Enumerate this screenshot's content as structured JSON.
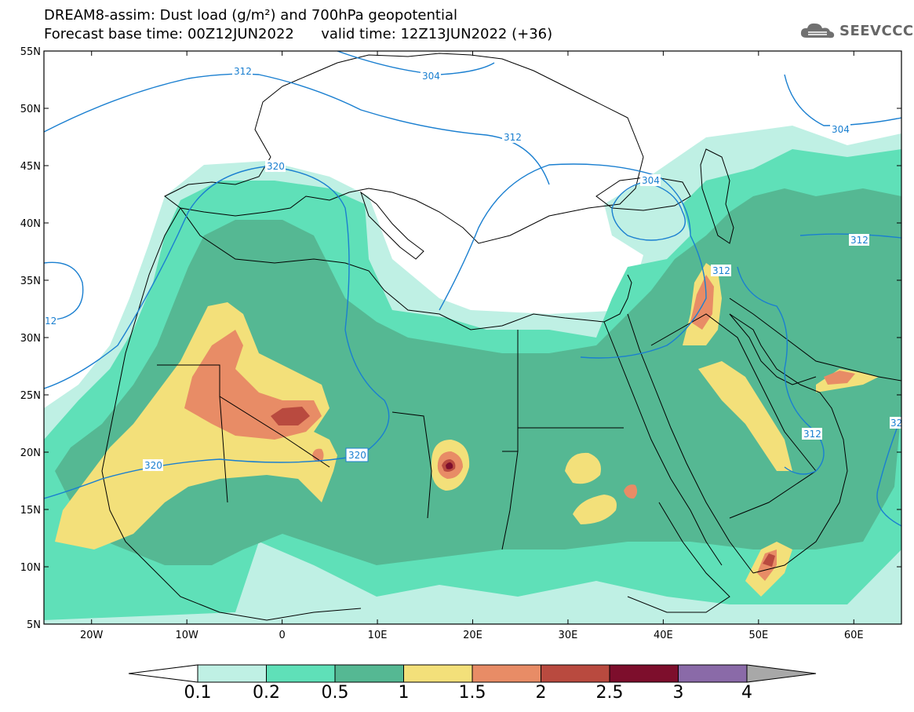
{
  "title": {
    "line1": "DREAM8-assim: Dust load (g/m²) and 700hPa geopotential",
    "line2": "Forecast base time: 00Z12JUN2022      valid time: 12Z13JUN2022 (+36)"
  },
  "logo": {
    "text": "SEEVCCC",
    "icon": "cloud-icon"
  },
  "axes": {
    "lon_range": [
      -25,
      65
    ],
    "lat_range": [
      5,
      55
    ],
    "x_ticks": [
      {
        "lon": -20,
        "label": "20W"
      },
      {
        "lon": -10,
        "label": "10W"
      },
      {
        "lon": 0,
        "label": "0"
      },
      {
        "lon": 10,
        "label": "10E"
      },
      {
        "lon": 20,
        "label": "20E"
      },
      {
        "lon": 30,
        "label": "30E"
      },
      {
        "lon": 40,
        "label": "40E"
      },
      {
        "lon": 50,
        "label": "50E"
      },
      {
        "lon": 60,
        "label": "60E"
      }
    ],
    "y_ticks": [
      {
        "lat": 55,
        "label": "55N"
      },
      {
        "lat": 50,
        "label": "50N"
      },
      {
        "lat": 45,
        "label": "45N"
      },
      {
        "lat": 40,
        "label": "40N"
      },
      {
        "lat": 35,
        "label": "35N"
      },
      {
        "lat": 30,
        "label": "30N"
      },
      {
        "lat": 25,
        "label": "25N"
      },
      {
        "lat": 20,
        "label": "20N"
      },
      {
        "lat": 15,
        "label": "15N"
      },
      {
        "lat": 10,
        "label": "10N"
      },
      {
        "lat": 5,
        "label": "5N"
      }
    ]
  },
  "colors": {
    "c01": "#bff0e4",
    "c02": "#5fe0b8",
    "c05": "#55b893",
    "c1": "#f3e07a",
    "c15": "#e88c66",
    "c2": "#b94a3f",
    "c25": "#7d0e2c",
    "c3": "#8a6aa8",
    "c4": "#a8a8a8",
    "contour": "#1a7fd0",
    "coast": "#000000"
  },
  "legend": {
    "labels": [
      "0.1",
      "0.2",
      "0.5",
      "1",
      "1.5",
      "2",
      "2.5",
      "3",
      "4"
    ],
    "bins": [
      "c01",
      "c02",
      "c05",
      "c1",
      "c15",
      "c2",
      "c25",
      "c3"
    ]
  },
  "contour_labels": [
    "312",
    "304",
    "312",
    "320",
    "304",
    "304",
    "312",
    "312",
    "312",
    "320",
    "312",
    "32",
    "12"
  ]
}
